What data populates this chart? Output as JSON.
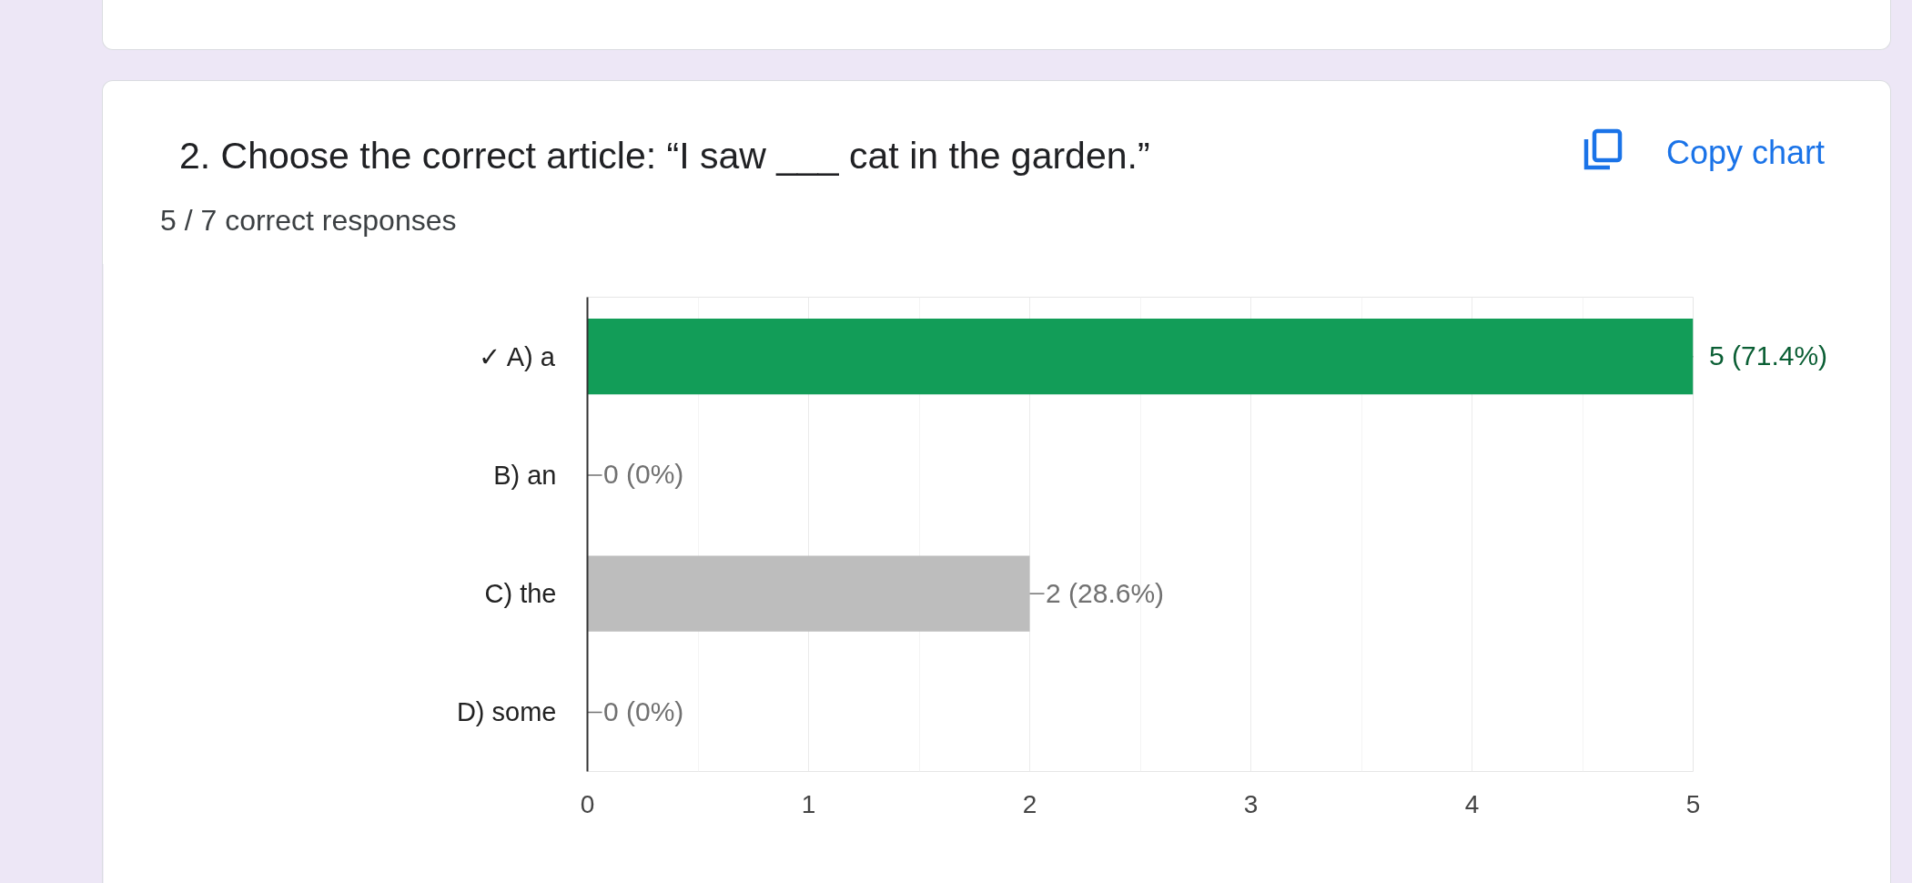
{
  "chart_data": {
    "type": "bar",
    "orientation": "horizontal",
    "title": "2. Choose the correct article: “I saw ___ cat in the garden.”",
    "subtitle": "5 / 7 correct responses",
    "annotations": [
      "Copy chart"
    ],
    "categories": [
      "✓ A) a",
      "B) an",
      "C) the",
      "D) some"
    ],
    "values": [
      5,
      0,
      2,
      0
    ],
    "colors": [
      "#129d58",
      "#bdbdbd",
      "#bdbdbd",
      "#bdbdbd"
    ],
    "value_labels": [
      "5 (71.4%)",
      "0 (0%)",
      "2 (28.6%)",
      "0 (0%)"
    ],
    "xlim": [
      0,
      5
    ],
    "xticks": [
      0,
      1,
      2,
      3,
      4,
      5
    ],
    "grid": "x"
  }
}
